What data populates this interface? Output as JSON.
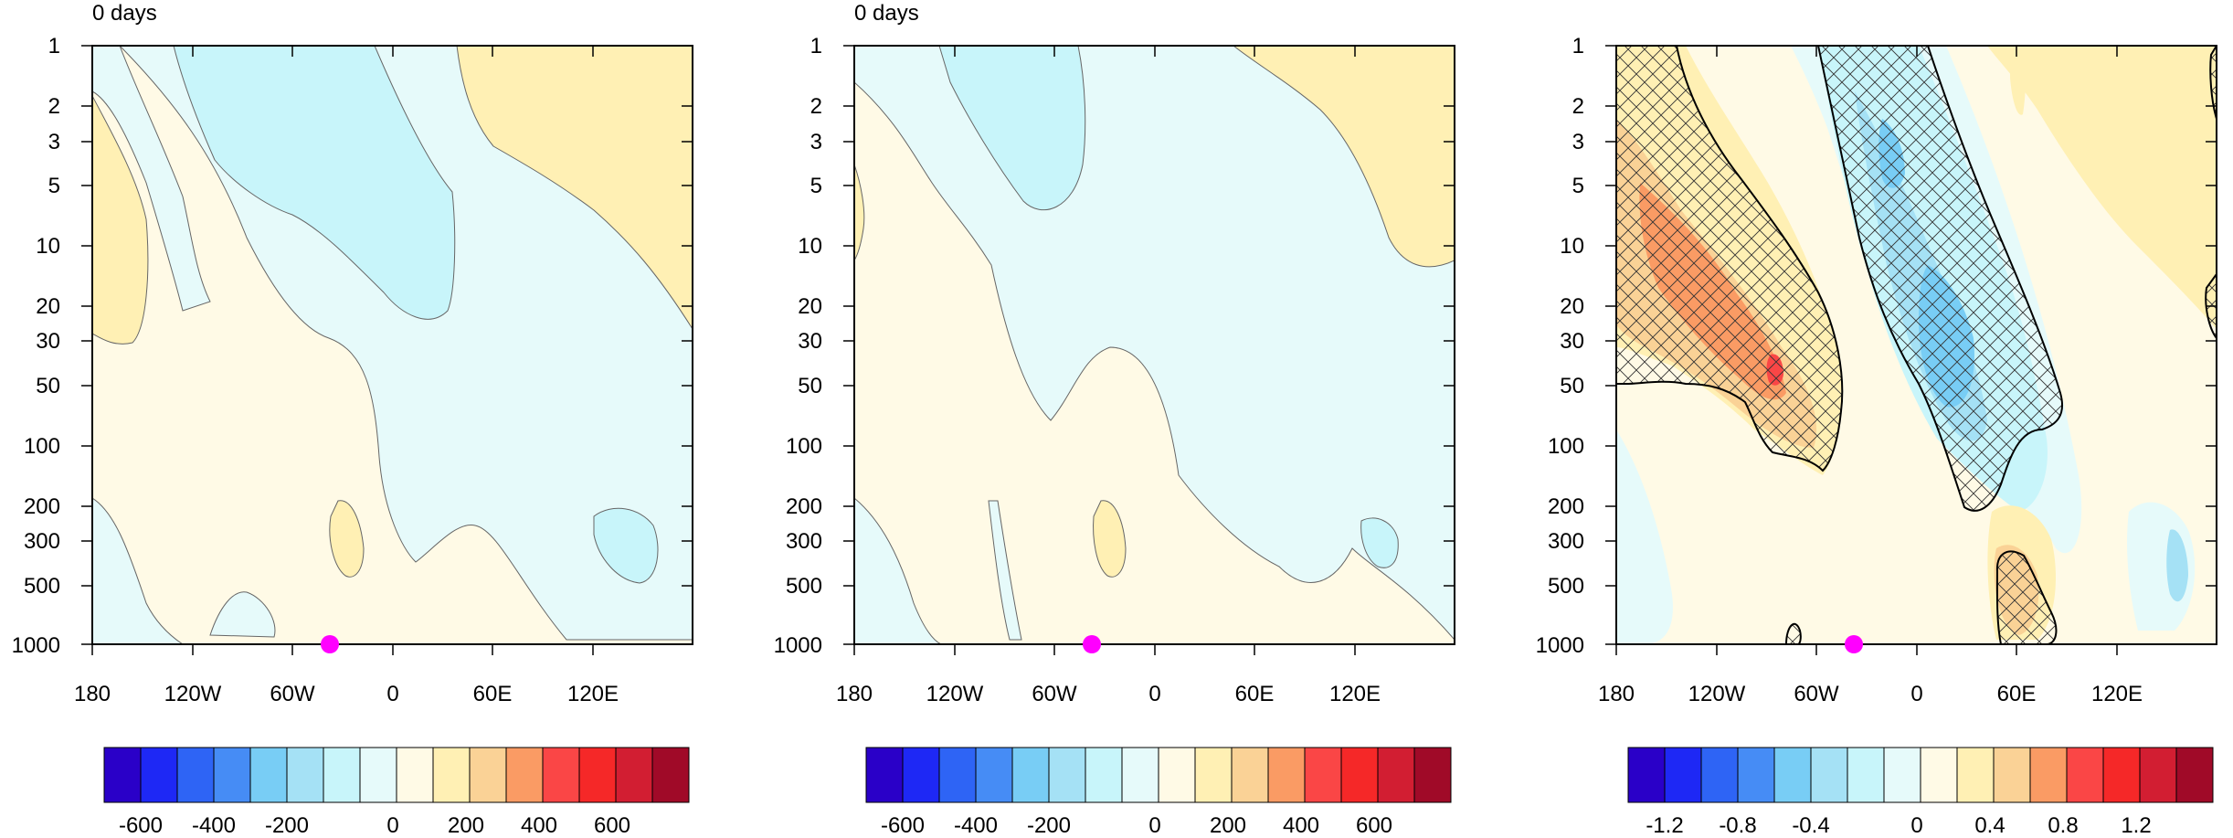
{
  "chart_data": [
    {
      "type": "contour",
      "title": "0 days",
      "xlabel": "",
      "ylabel": "",
      "x_ticks": [
        "180",
        "120W",
        "60W",
        "0",
        "60E",
        "120E"
      ],
      "y_scale": "log",
      "y_ticks": [
        "1",
        "2",
        "3",
        "5",
        "10",
        "20",
        "30",
        "50",
        "100",
        "200",
        "300",
        "500",
        "1000"
      ],
      "y_range": [
        1000,
        1
      ],
      "marker": {
        "longitude": "40W",
        "level": 1000,
        "color": "#ff00ff"
      },
      "colorbar": {
        "labels": [
          "-600",
          "-400",
          "-200",
          "0",
          "200",
          "400",
          "600"
        ],
        "colors": [
          "#2a00c8",
          "#1e28f5",
          "#2e64f5",
          "#468cf5",
          "#78cdf5",
          "#a5e1f5",
          "#c8f5fa",
          "#e6fafa",
          "#fffae6",
          "#fff0b4",
          "#fad296",
          "#fa9b64",
          "#fa4646",
          "#f52828",
          "#d21e32",
          "#a00a28"
        ]
      },
      "value_range": [
        -700,
        700
      ]
    },
    {
      "type": "contour",
      "title": "0 days",
      "xlabel": "",
      "ylabel": "",
      "x_ticks": [
        "180",
        "120W",
        "60W",
        "0",
        "60E",
        "120E"
      ],
      "y_scale": "log",
      "y_ticks": [
        "1",
        "2",
        "3",
        "5",
        "10",
        "20",
        "30",
        "50",
        "100",
        "200",
        "300",
        "500",
        "1000"
      ],
      "y_range": [
        1000,
        1
      ],
      "marker": {
        "longitude": "40W",
        "level": 1000,
        "color": "#ff00ff"
      },
      "colorbar": {
        "labels": [
          "-600",
          "-400",
          "-200",
          "0",
          "200",
          "400",
          "600"
        ]
      },
      "value_range": [
        -700,
        700
      ]
    },
    {
      "type": "contour",
      "title": "",
      "xlabel": "",
      "ylabel": "",
      "x_ticks": [
        "180",
        "120W",
        "60W",
        "0",
        "60E",
        "120E"
      ],
      "y_scale": "log",
      "y_ticks": [
        "1",
        "2",
        "3",
        "5",
        "10",
        "20",
        "30",
        "50",
        "100",
        "200",
        "300",
        "500",
        "1000"
      ],
      "y_range": [
        1000,
        1
      ],
      "hatching": "significance regions outlined in black",
      "marker": {
        "longitude": "40W",
        "level": 1000,
        "color": "#ff00ff"
      },
      "colorbar": {
        "labels": [
          "-1.2",
          "-0.8",
          "-0.4",
          "0",
          "0.4",
          "0.8",
          "1.2"
        ]
      },
      "value_range": [
        -1.4,
        1.4
      ]
    }
  ]
}
